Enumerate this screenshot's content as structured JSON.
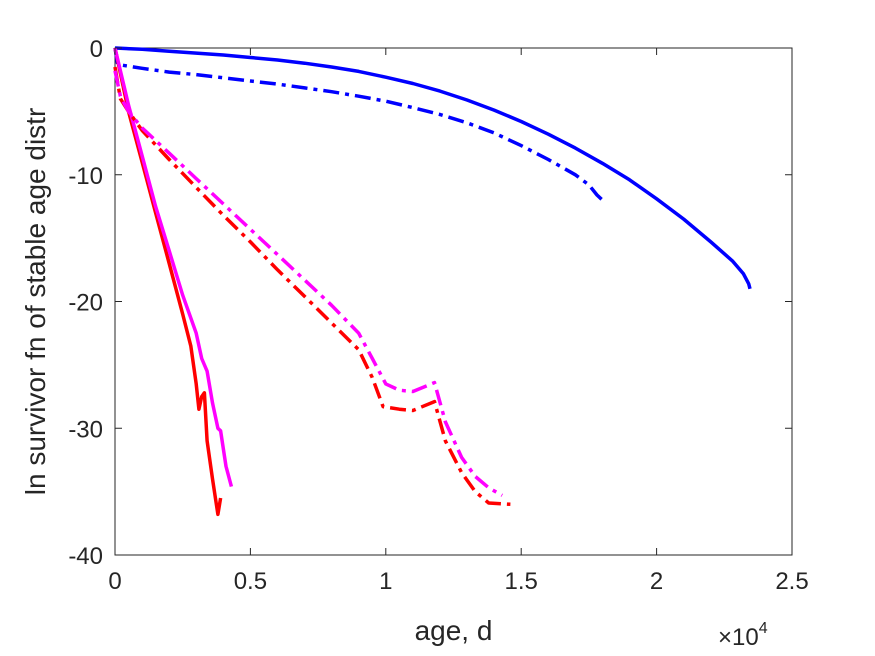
{
  "chart_data": {
    "type": "line",
    "title": "",
    "xlabel": "age, d",
    "ylabel": "ln survivor fn of stable age distr",
    "x_exponent": {
      "base": "×10",
      "power": "4"
    },
    "xlim": [
      0,
      25000
    ],
    "ylim": [
      -40,
      0
    ],
    "x_ticks": [
      0,
      5000,
      10000,
      15000,
      20000,
      25000
    ],
    "x_tick_labels": [
      "0",
      "0.5",
      "1",
      "1.5",
      "2",
      "2.5"
    ],
    "y_ticks": [
      0,
      -10,
      -20,
      -30,
      -40
    ],
    "y_tick_labels": [
      "0",
      "-10",
      "-20",
      "-30",
      "-40"
    ],
    "grid": false,
    "legend": "none",
    "series": [
      {
        "color": "#0000ff",
        "dash": "solid",
        "points": [
          [
            0,
            0
          ],
          [
            1000,
            -0.1
          ],
          [
            2000,
            -0.25
          ],
          [
            3000,
            -0.4
          ],
          [
            4000,
            -0.55
          ],
          [
            5000,
            -0.75
          ],
          [
            6000,
            -0.95
          ],
          [
            7000,
            -1.2
          ],
          [
            8000,
            -1.5
          ],
          [
            9000,
            -1.85
          ],
          [
            10000,
            -2.3
          ],
          [
            11000,
            -2.8
          ],
          [
            12000,
            -3.4
          ],
          [
            13000,
            -4.1
          ],
          [
            14000,
            -4.9
          ],
          [
            15000,
            -5.8
          ],
          [
            16000,
            -6.8
          ],
          [
            17000,
            -7.9
          ],
          [
            18000,
            -9.1
          ],
          [
            19000,
            -10.4
          ],
          [
            20000,
            -11.9
          ],
          [
            21000,
            -13.5
          ],
          [
            22000,
            -15.3
          ],
          [
            22800,
            -16.8
          ],
          [
            23200,
            -17.8
          ],
          [
            23400,
            -18.6
          ],
          [
            23450,
            -19.0
          ]
        ]
      },
      {
        "color": "#0000ff",
        "dash": "dashdot",
        "points": [
          [
            0,
            0
          ],
          [
            100,
            -1.3
          ],
          [
            1000,
            -1.6
          ],
          [
            2000,
            -1.9
          ],
          [
            3000,
            -2.1
          ],
          [
            4000,
            -2.35
          ],
          [
            5000,
            -2.6
          ],
          [
            6000,
            -2.85
          ],
          [
            7000,
            -3.15
          ],
          [
            8000,
            -3.45
          ],
          [
            9000,
            -3.8
          ],
          [
            10000,
            -4.2
          ],
          [
            11000,
            -4.7
          ],
          [
            12000,
            -5.25
          ],
          [
            13000,
            -5.9
          ],
          [
            14000,
            -6.7
          ],
          [
            15000,
            -7.7
          ],
          [
            16000,
            -8.8
          ],
          [
            17000,
            -10.0
          ],
          [
            17500,
            -10.8
          ],
          [
            17800,
            -11.6
          ],
          [
            18000,
            -12.0
          ]
        ]
      },
      {
        "color": "#ff0000",
        "dash": "solid",
        "points": [
          [
            0,
            0
          ],
          [
            500,
            -5
          ],
          [
            1000,
            -9
          ],
          [
            1500,
            -13
          ],
          [
            2000,
            -17
          ],
          [
            2500,
            -21
          ],
          [
            2800,
            -23.5
          ],
          [
            3000,
            -26.5
          ],
          [
            3100,
            -28.5
          ],
          [
            3200,
            -27.5
          ],
          [
            3300,
            -27.2
          ],
          [
            3400,
            -31
          ],
          [
            3600,
            -34
          ],
          [
            3800,
            -36.8
          ],
          [
            3900,
            -35.5
          ]
        ]
      },
      {
        "color": "#ff00ff",
        "dash": "solid",
        "points": [
          [
            0,
            0
          ],
          [
            500,
            -4.5
          ],
          [
            1000,
            -8.5
          ],
          [
            1500,
            -12.5
          ],
          [
            2000,
            -16
          ],
          [
            2500,
            -19.5
          ],
          [
            3000,
            -22.5
          ],
          [
            3200,
            -24.5
          ],
          [
            3400,
            -25.5
          ],
          [
            3600,
            -28
          ],
          [
            3800,
            -30
          ],
          [
            3900,
            -30.2
          ],
          [
            4100,
            -33
          ],
          [
            4300,
            -34.6
          ]
        ]
      },
      {
        "color": "#ff0000",
        "dash": "dashdot",
        "points": [
          [
            0,
            -1.5
          ],
          [
            200,
            -4
          ],
          [
            500,
            -5
          ],
          [
            1000,
            -6.5
          ],
          [
            2000,
            -8.8
          ],
          [
            3000,
            -11
          ],
          [
            4000,
            -13.2
          ],
          [
            5000,
            -15.3
          ],
          [
            6000,
            -17.5
          ],
          [
            7000,
            -19.6
          ],
          [
            8000,
            -21.7
          ],
          [
            9000,
            -23.8
          ],
          [
            9500,
            -26
          ],
          [
            9900,
            -28.3
          ],
          [
            10500,
            -28.5
          ],
          [
            11000,
            -28.6
          ],
          [
            11800,
            -27.9
          ],
          [
            12200,
            -31
          ],
          [
            12800,
            -33.5
          ],
          [
            13300,
            -35
          ],
          [
            13800,
            -35.9
          ],
          [
            14600,
            -36
          ]
        ]
      },
      {
        "color": "#ff00ff",
        "dash": "dashdot",
        "points": [
          [
            0,
            -1.8
          ],
          [
            200,
            -3.8
          ],
          [
            500,
            -5
          ],
          [
            1000,
            -6.3
          ],
          [
            2000,
            -8.3
          ],
          [
            3000,
            -10.3
          ],
          [
            4000,
            -12.3
          ],
          [
            5000,
            -14.3
          ],
          [
            6000,
            -16.3
          ],
          [
            7000,
            -18.3
          ],
          [
            8000,
            -20.3
          ],
          [
            9000,
            -22.5
          ],
          [
            9500,
            -24.5
          ],
          [
            10000,
            -26.5
          ],
          [
            10500,
            -27
          ],
          [
            11000,
            -27.1
          ],
          [
            11800,
            -26.4
          ],
          [
            12200,
            -29.5
          ],
          [
            12800,
            -32.3
          ],
          [
            13300,
            -33.8
          ],
          [
            13800,
            -34.7
          ],
          [
            14300,
            -35.3
          ]
        ]
      }
    ]
  }
}
